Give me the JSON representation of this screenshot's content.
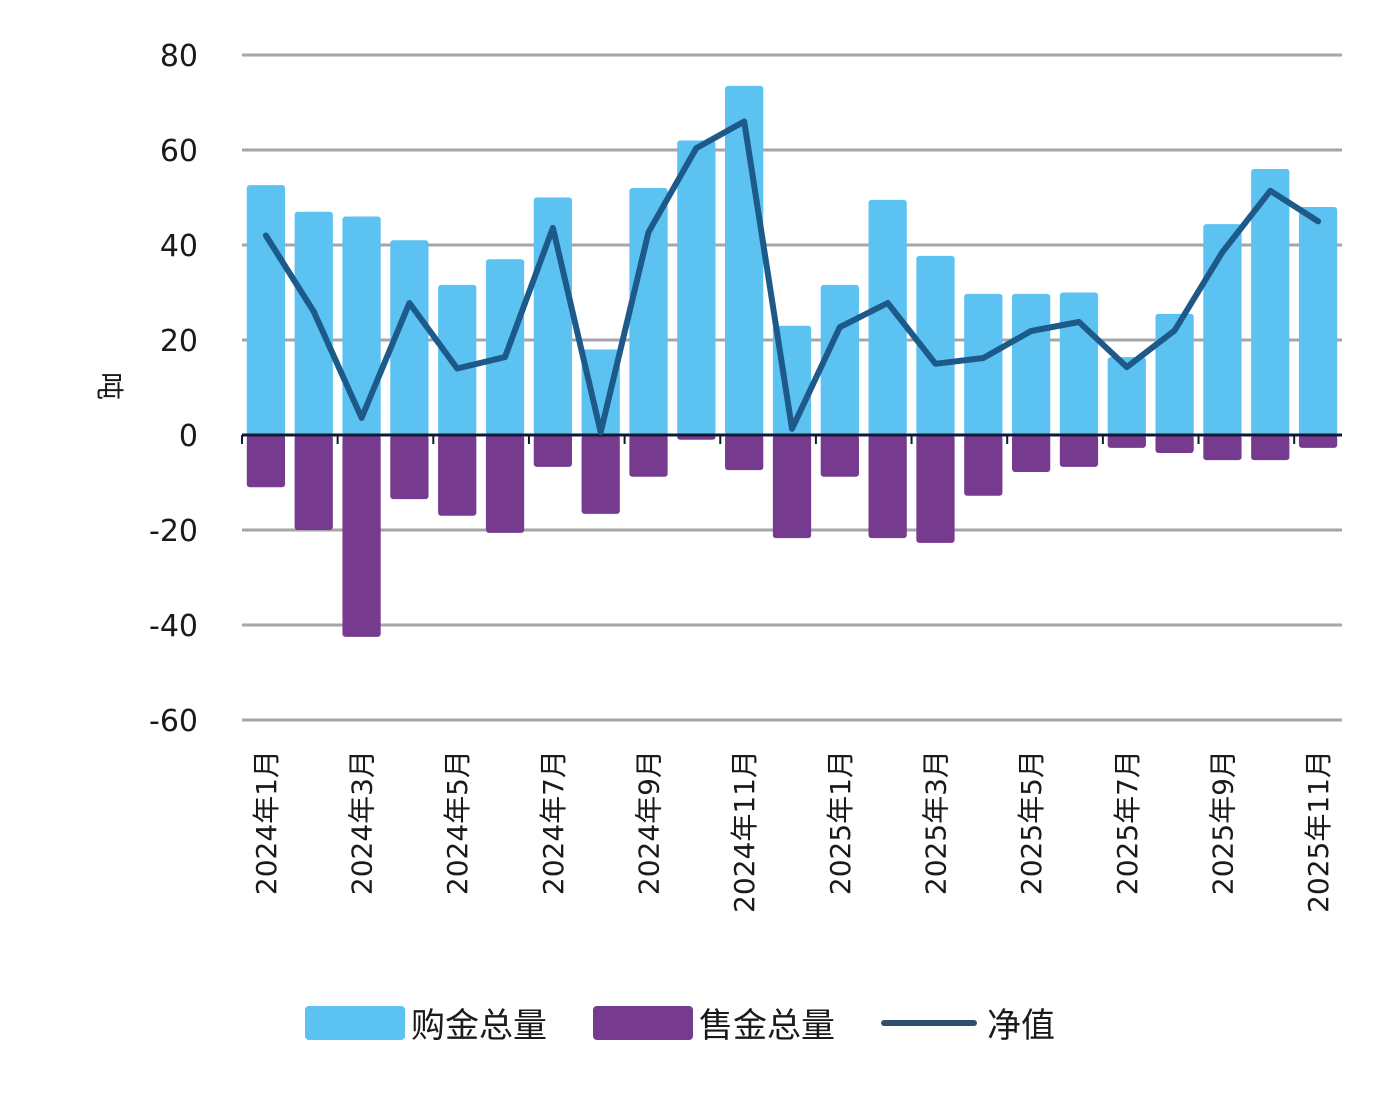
{
  "chart_data": {
    "type": "bar",
    "title": "",
    "xlabel": "",
    "ylabel": "吨",
    "ylim": [
      -60,
      80
    ],
    "yticks": [
      80,
      60,
      40,
      20,
      0,
      -20,
      -40,
      -60
    ],
    "grid": true,
    "legend_position": "bottom",
    "categories": [
      "2024年1月",
      "2024年2月",
      "2024年3月",
      "2024年4月",
      "2024年5月",
      "2024年6月",
      "2024年7月",
      "2024年8月",
      "2024年9月",
      "2024年10月",
      "2024年11月",
      "2024年12月",
      "2025年1月",
      "2025年2月",
      "2025年3月",
      "2025年4月",
      "2025年5月",
      "2025年6月",
      "2025年7月",
      "2025年8月",
      "2025年9月",
      "2025年10月",
      "2025年11月"
    ],
    "xtick_labels": [
      "2024年1月",
      "2024年3月",
      "2024年5月",
      "2024年7月",
      "2024年9月",
      "2024年11月",
      "2025年1月",
      "2025年3月",
      "2025年5月",
      "2025年7月",
      "2025年9月",
      "2025年11月"
    ],
    "series": [
      {
        "name": "购金总量",
        "type": "bar",
        "color": "#5bc2f2",
        "values": [
          52.6,
          47,
          46,
          41,
          31.6,
          37,
          50,
          18,
          52,
          62,
          73.5,
          23,
          31.6,
          49.5,
          37.7,
          29.7,
          29.7,
          30,
          16.4,
          25.5,
          44.4,
          56,
          48
        ]
      },
      {
        "name": "售金总量",
        "type": "bar",
        "color": "#763a8e",
        "values": [
          -11,
          -20,
          -42.5,
          -13.5,
          -17,
          -20.6,
          -6.7,
          -16.6,
          -8.8,
          -1,
          -7.4,
          -21.7,
          -8.8,
          -21.7,
          -22.7,
          -12.8,
          -7.8,
          -6.7,
          -2.7,
          -3.8,
          -5.3,
          -5.3,
          -2.7
        ]
      },
      {
        "name": "净值",
        "type": "line",
        "color": "#1d5a8a",
        "values": [
          42,
          26,
          3.6,
          27.8,
          14,
          16.4,
          43.6,
          0.6,
          42.7,
          60.4,
          66,
          1.3,
          22.7,
          27.8,
          15,
          16.2,
          21.9,
          23.8,
          14.3,
          22,
          38.5,
          51.4,
          45
        ]
      }
    ]
  },
  "legend": {
    "items": [
      {
        "label": "购金总量",
        "kind": "bar",
        "color": "#5bc2f2"
      },
      {
        "label": "售金总量",
        "kind": "bar",
        "color": "#763a8e"
      },
      {
        "label": "净值",
        "kind": "line",
        "color": "#2f4f6f"
      }
    ]
  }
}
